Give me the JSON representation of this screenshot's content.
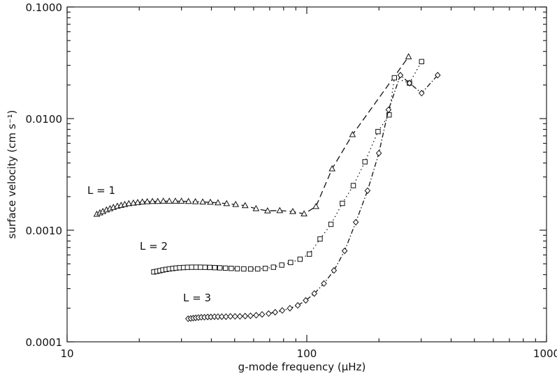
{
  "chart_data": {
    "type": "line",
    "title": "",
    "xlabel": "g-mode frequency (µHz)",
    "ylabel": "surface velocity (cm s⁻¹)",
    "xscale": "log",
    "yscale": "log",
    "xlim": [
      10,
      1000
    ],
    "ylim": [
      0.0001,
      0.1
    ],
    "xticks": [
      10,
      100,
      1000
    ],
    "xtick_labels": [
      "10",
      "100",
      "1000"
    ],
    "yticks": [
      0.0001,
      0.001,
      0.01,
      0.1
    ],
    "ytick_labels": [
      "0.0001",
      "0.0010",
      "0.0100",
      "0.1000"
    ],
    "grid": false,
    "series": [
      {
        "name": "L = 1",
        "marker": "triangle",
        "line_style": "dashed",
        "x": [
          13.3,
          13.7,
          14.1,
          14.6,
          15.1,
          15.6,
          16.2,
          16.8,
          17.4,
          18.1,
          18.9,
          19.7,
          20.6,
          21.6,
          22.7,
          23.9,
          25.2,
          26.7,
          28.3,
          30.0,
          32.1,
          34.3,
          36.8,
          39.6,
          42.6,
          46.3,
          50.5,
          55.3,
          61.4,
          68.6,
          77.1,
          87.4,
          97.4,
          109.2,
          127.5,
          155.1,
          265.8
        ],
        "y": [
          0.00139,
          0.00143,
          0.00147,
          0.00152,
          0.00156,
          0.0016,
          0.00164,
          0.00167,
          0.0017,
          0.00173,
          0.00175,
          0.00177,
          0.00179,
          0.0018,
          0.00181,
          0.00181,
          0.00182,
          0.00182,
          0.00182,
          0.00182,
          0.00181,
          0.0018,
          0.00179,
          0.00178,
          0.00176,
          0.00173,
          0.0017,
          0.00166,
          0.00156,
          0.00149,
          0.0015,
          0.00147,
          0.0014,
          0.00163,
          0.00355,
          0.00718,
          0.0358
        ]
      },
      {
        "name": "L = 2",
        "marker": "square",
        "line_style": "dotted",
        "x": [
          23.0,
          23.7,
          24.4,
          25.1,
          25.9,
          26.7,
          27.6,
          28.5,
          29.5,
          30.6,
          31.8,
          33.1,
          34.5,
          36.0,
          37.6,
          39.4,
          41.3,
          43.4,
          45.8,
          48.4,
          51.3,
          54.6,
          58.3,
          62.4,
          67.1,
          72.6,
          78.6,
          85.6,
          93.7,
          102.5,
          113.6,
          126.1,
          140.7,
          156.3,
          174.8,
          198.2,
          220.5,
          231.9,
          268.1,
          301.3
        ],
        "y": [
          0.000423,
          0.000428,
          0.000434,
          0.00044,
          0.000445,
          0.00045,
          0.000454,
          0.000458,
          0.000461,
          0.000463,
          0.000465,
          0.000466,
          0.000466,
          0.000466,
          0.000465,
          0.000464,
          0.000462,
          0.00046,
          0.000457,
          0.000455,
          0.000452,
          0.00045,
          0.000449,
          0.00045,
          0.000455,
          0.000466,
          0.000487,
          0.000514,
          0.00055,
          0.000611,
          0.000835,
          0.00113,
          0.00174,
          0.00251,
          0.0041,
          0.00765,
          0.0108,
          0.0232,
          0.0208,
          0.0324
        ]
      },
      {
        "name": "L = 3",
        "marker": "diamond",
        "line_style": "dash-dot",
        "x": [
          32.0,
          32.8,
          33.6,
          34.4,
          35.3,
          36.3,
          37.4,
          38.6,
          39.8,
          41.2,
          42.6,
          44.2,
          46.0,
          48.0,
          50.2,
          52.6,
          55.3,
          58.2,
          61.5,
          65.1,
          69.3,
          73.8,
          79.0,
          85.0,
          91.7,
          99.0,
          107.5,
          117.9,
          129.8,
          143.8,
          160.1,
          179.2,
          199.8,
          219.2,
          245.7,
          268.1,
          301.3,
          351.5
        ],
        "y": [
          0.000161,
          0.000162,
          0.000163,
          0.000164,
          0.000165,
          0.000166,
          0.000166,
          0.000167,
          0.000167,
          0.000168,
          0.000168,
          0.000168,
          0.000168,
          0.000169,
          0.000169,
          0.000169,
          0.00017,
          0.000171,
          0.000173,
          0.000176,
          0.000179,
          0.000184,
          0.000191,
          0.0002,
          0.000212,
          0.000235,
          0.000271,
          0.000333,
          0.000436,
          0.000653,
          0.00118,
          0.00226,
          0.0049,
          0.012,
          0.0245,
          0.0208,
          0.0169,
          0.0245
        ]
      }
    ]
  }
}
